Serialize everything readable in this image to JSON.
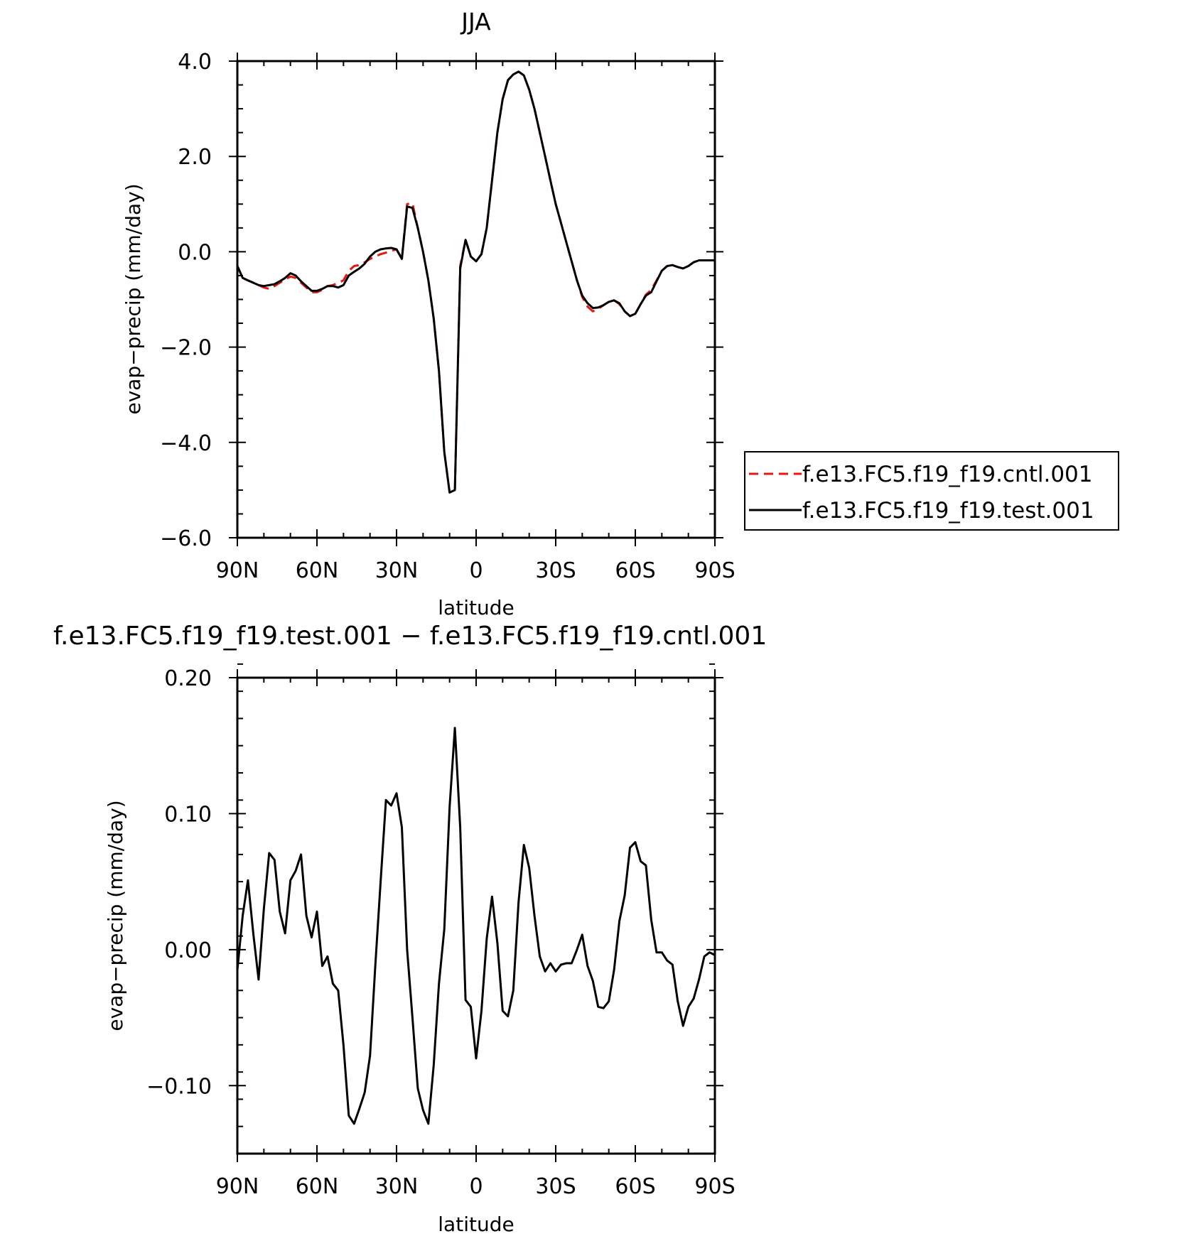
{
  "chart_data": [
    {
      "type": "line",
      "title": "JJA",
      "xlabel": "latitude",
      "ylabel": "evap−precip (mm/day)",
      "xlim": [
        90,
        -90
      ],
      "ylim": [
        -6,
        4
      ],
      "xticks": [
        90,
        60,
        30,
        0,
        -30,
        -60,
        -90
      ],
      "xtick_labels": [
        "90N",
        "60N",
        "30N",
        "0",
        "30S",
        "60S",
        "90S"
      ],
      "yticks": [
        4,
        2,
        0,
        -2,
        -4,
        -6
      ],
      "ytick_labels": [
        "4.0",
        "2.0",
        "0.0",
        "−2.0",
        "−4.0",
        "−6.0"
      ],
      "grid": false,
      "legend_position": "right, outside plot",
      "x": [
        90,
        88,
        86,
        84,
        82,
        80,
        78,
        76,
        74,
        72,
        70,
        68,
        66,
        64,
        62,
        60,
        58,
        56,
        54,
        52,
        50,
        48,
        46,
        44,
        42,
        40,
        38,
        36,
        34,
        32,
        30,
        28,
        26,
        24,
        22,
        20,
        18,
        16,
        14,
        12,
        10,
        8,
        6,
        4,
        2,
        0,
        -2,
        -4,
        -6,
        -8,
        -10,
        -12,
        -14,
        -16,
        -18,
        -20,
        -22,
        -24,
        -26,
        -28,
        -30,
        -32,
        -34,
        -36,
        -38,
        -40,
        -42,
        -44,
        -46,
        -48,
        -50,
        -52,
        -54,
        -56,
        -58,
        -60,
        -62,
        -64,
        -66,
        -68,
        -70,
        -72,
        -74,
        -76,
        -78,
        -80,
        -82,
        -84,
        -86,
        -88,
        -90
      ],
      "series": [
        {
          "name": "f.e13.FC5.f19_f19.cntl.001",
          "color": "#e8170d",
          "dash": "dashed",
          "values": [
            -0.3,
            -0.55,
            -0.6,
            -0.65,
            -0.7,
            -0.75,
            -0.78,
            -0.72,
            -0.65,
            -0.58,
            -0.52,
            -0.55,
            -0.65,
            -0.75,
            -0.85,
            -0.85,
            -0.8,
            -0.72,
            -0.7,
            -0.65,
            -0.6,
            -0.4,
            -0.3,
            -0.28,
            -0.22,
            -0.15,
            -0.1,
            -0.05,
            -0.02,
            0.02,
            0.05,
            -0.15,
            1.0,
            1.02,
            0.5,
            0.0,
            -0.6,
            -1.4,
            -2.5,
            -4.2,
            -5.05,
            -5.0,
            -0.3,
            0.25,
            -0.1,
            -0.2,
            -0.05,
            0.5,
            1.5,
            2.5,
            3.2,
            3.6,
            3.72,
            3.78,
            3.7,
            3.4,
            3.0,
            2.5,
            2.0,
            1.5,
            1.0,
            0.6,
            0.2,
            -0.2,
            -0.6,
            -0.95,
            -1.15,
            -1.25,
            -1.2,
            -1.12,
            -1.05,
            -1.02,
            -1.1,
            -1.25,
            -1.35,
            -1.3,
            -1.1,
            -0.9,
            -0.8,
            -0.6,
            -0.4,
            -0.3,
            -0.28,
            -0.32,
            -0.35,
            -0.3,
            -0.22,
            -0.18,
            -0.18,
            -0.18,
            -0.18
          ]
        },
        {
          "name": "f.e13.FC5.f19_f19.test.001",
          "color": "#000000",
          "dash": "solid",
          "values": [
            -0.3,
            -0.55,
            -0.6,
            -0.65,
            -0.7,
            -0.72,
            -0.7,
            -0.68,
            -0.62,
            -0.55,
            -0.45,
            -0.5,
            -0.62,
            -0.72,
            -0.82,
            -0.82,
            -0.78,
            -0.72,
            -0.72,
            -0.75,
            -0.7,
            -0.5,
            -0.42,
            -0.35,
            -0.25,
            -0.1,
            0.0,
            0.05,
            0.07,
            0.08,
            0.05,
            -0.15,
            0.95,
            0.92,
            0.5,
            0.0,
            -0.6,
            -1.4,
            -2.5,
            -4.2,
            -5.05,
            -5.0,
            -0.35,
            0.25,
            -0.1,
            -0.2,
            -0.05,
            0.5,
            1.5,
            2.5,
            3.2,
            3.6,
            3.72,
            3.78,
            3.7,
            3.4,
            3.0,
            2.5,
            2.0,
            1.5,
            1.0,
            0.6,
            0.2,
            -0.2,
            -0.6,
            -0.92,
            -1.08,
            -1.18,
            -1.17,
            -1.12,
            -1.05,
            -1.02,
            -1.08,
            -1.25,
            -1.35,
            -1.3,
            -1.1,
            -0.92,
            -0.85,
            -0.62,
            -0.4,
            -0.3,
            -0.28,
            -0.32,
            -0.35,
            -0.3,
            -0.22,
            -0.18,
            -0.18,
            -0.18,
            -0.18
          ]
        }
      ]
    },
    {
      "type": "line",
      "title": "f.e13.FC5.f19_f19.test.001 − f.e13.FC5.f19_f19.cntl.001",
      "xlabel": "latitude",
      "ylabel": "evap−precip (mm/day)",
      "xlim": [
        90,
        -90
      ],
      "ylim": [
        -0.15,
        0.2
      ],
      "xticks": [
        90,
        60,
        30,
        0,
        -30,
        -60,
        -90
      ],
      "xtick_labels": [
        "90N",
        "60N",
        "30N",
        "0",
        "30S",
        "60S",
        "90S"
      ],
      "yticks": [
        0.2,
        0.1,
        0.0,
        -0.1
      ],
      "ytick_labels": [
        "0.20",
        "0.10",
        "0.00",
        "−0.10"
      ],
      "grid": false,
      "x": [
        90,
        88,
        86,
        84,
        82,
        80,
        78,
        76,
        74,
        72,
        70,
        68,
        66,
        64,
        62,
        60,
        58,
        56,
        54,
        52,
        50,
        48,
        46,
        44,
        42,
        40,
        38,
        36,
        34,
        32,
        30,
        28,
        26,
        24,
        22,
        20,
        18,
        16,
        14,
        12,
        10,
        8,
        6,
        4,
        2,
        0,
        -2,
        -4,
        -6,
        -8,
        -10,
        -12,
        -14,
        -16,
        -18,
        -20,
        -22,
        -24,
        -26,
        -28,
        -30,
        -32,
        -34,
        -36,
        -38,
        -40,
        -42,
        -44,
        -46,
        -48,
        -50,
        -52,
        -54,
        -56,
        -58,
        -60,
        -62,
        -64,
        -66,
        -68,
        -70,
        -72,
        -74,
        -76,
        -78,
        -80,
        -82,
        -84,
        -86,
        -88,
        -90
      ],
      "series": [
        {
          "color": "#000000",
          "dash": "solid",
          "values": [
            -0.015,
            0.025,
            0.051,
            0.012,
            -0.022,
            0.03,
            0.071,
            0.066,
            0.028,
            0.012,
            0.051,
            0.058,
            0.07,
            0.025,
            0.009,
            0.028,
            -0.012,
            -0.005,
            -0.025,
            -0.03,
            -0.07,
            -0.122,
            -0.128,
            -0.117,
            -0.105,
            -0.078,
            -0.012,
            0.05,
            0.11,
            0.106,
            0.115,
            0.09,
            0.0,
            -0.05,
            -0.102,
            -0.118,
            -0.128,
            -0.085,
            -0.025,
            0.015,
            0.105,
            0.163,
            0.09,
            -0.037,
            -0.042,
            -0.08,
            -0.045,
            0.008,
            0.039,
            0.005,
            -0.045,
            -0.049,
            -0.03,
            0.035,
            0.077,
            0.06,
            0.025,
            -0.005,
            -0.016,
            -0.01,
            -0.016,
            -0.011,
            -0.01,
            -0.01,
            0.0,
            0.011,
            -0.012,
            -0.023,
            -0.042,
            -0.043,
            -0.038,
            -0.015,
            0.021,
            0.04,
            0.075,
            0.079,
            0.065,
            0.062,
            0.022,
            -0.002,
            -0.002,
            -0.008,
            -0.011,
            -0.038,
            -0.056,
            -0.042,
            -0.036,
            -0.022,
            -0.005,
            -0.002,
            -0.004
          ]
        }
      ]
    }
  ]
}
